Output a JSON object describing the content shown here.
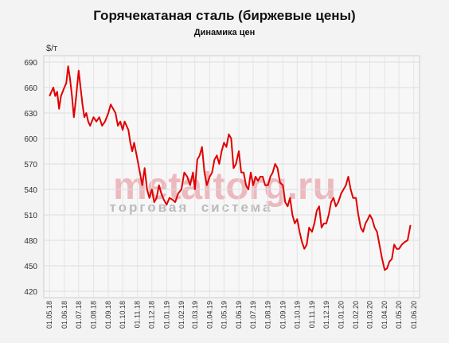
{
  "chart_data": {
    "type": "line",
    "title": "Горячекатаная сталь (биржевые цены)",
    "subtitle": "Динамика цен",
    "y_label": "$/т",
    "watermark": "metaltorg.ru",
    "watermark_sub": "торговая  система",
    "grid": true,
    "xlim": [
      "19.04.18",
      "13.06.20"
    ],
    "ylim": [
      420,
      690
    ],
    "yticks": [
      420,
      450,
      480,
      510,
      540,
      570,
      600,
      630,
      660,
      690
    ],
    "xticks": [
      "01.05.18",
      "01.06.18",
      "01.07.18",
      "01.08.18",
      "01.09.18",
      "01.10.18",
      "01.11.18",
      "01.12.18",
      "01.01.19",
      "01.02.19",
      "01.03.19",
      "01.04.19",
      "01.05.19",
      "01.06.19",
      "01.07.19",
      "01.08.19",
      "01.09.19",
      "01.10.19",
      "01.11.19",
      "01.12.19",
      "01.01.20",
      "01.02.20",
      "01.03.20",
      "01.04.20",
      "01.05.20",
      "01.06.20"
    ],
    "x": [
      "01.05.18",
      "05.05.18",
      "09.05.18",
      "13.05.18",
      "17.05.18",
      "21.05.18",
      "25.05.18",
      "01.06.18",
      "05.06.18",
      "09.06.18",
      "13.06.18",
      "17.06.18",
      "21.06.18",
      "25.06.18",
      "01.07.18",
      "05.07.18",
      "09.07.18",
      "13.07.18",
      "17.07.18",
      "21.07.18",
      "25.07.18",
      "01.08.18",
      "07.08.18",
      "13.08.18",
      "19.08.18",
      "25.08.18",
      "01.09.18",
      "06.09.18",
      "11.09.18",
      "16.09.18",
      "21.09.18",
      "26.09.18",
      "01.10.18",
      "05.10.18",
      "09.10.18",
      "13.10.18",
      "17.10.18",
      "21.10.18",
      "25.10.18",
      "01.11.18",
      "06.11.18",
      "11.11.18",
      "16.11.18",
      "21.11.18",
      "26.11.18",
      "01.12.18",
      "06.12.18",
      "11.12.18",
      "16.12.18",
      "21.12.18",
      "26.12.18",
      "01.01.19",
      "07.01.19",
      "13.01.19",
      "19.01.19",
      "25.01.19",
      "01.02.19",
      "07.02.19",
      "13.02.19",
      "19.02.19",
      "25.02.19",
      "01.03.19",
      "06.03.19",
      "11.03.19",
      "16.03.19",
      "21.03.19",
      "26.03.19",
      "01.04.19",
      "06.04.19",
      "11.04.19",
      "16.04.19",
      "21.04.19",
      "26.04.19",
      "01.05.19",
      "06.05.19",
      "11.05.19",
      "16.05.19",
      "21.05.19",
      "26.05.19",
      "01.06.19",
      "06.06.19",
      "11.06.19",
      "16.06.19",
      "21.06.19",
      "26.06.19",
      "01.07.19",
      "06.07.19",
      "11.07.19",
      "16.07.19",
      "21.07.19",
      "26.07.19",
      "01.08.19",
      "06.08.19",
      "11.08.19",
      "16.08.19",
      "21.08.19",
      "26.08.19",
      "01.09.19",
      "06.09.19",
      "11.09.19",
      "16.09.19",
      "21.09.19",
      "26.09.19",
      "01.10.19",
      "06.10.19",
      "11.10.19",
      "16.10.19",
      "21.10.19",
      "26.10.19",
      "01.11.19",
      "06.11.19",
      "11.11.19",
      "16.11.19",
      "21.11.19",
      "26.11.19",
      "01.12.19",
      "06.12.19",
      "11.12.19",
      "16.12.19",
      "21.12.19",
      "26.12.19",
      "01.01.20",
      "06.01.20",
      "11.01.20",
      "16.01.20",
      "21.01.20",
      "26.01.20",
      "01.02.20",
      "06.02.20",
      "11.02.20",
      "16.02.20",
      "21.02.20",
      "26.02.20",
      "01.03.20",
      "06.03.20",
      "11.03.20",
      "16.03.20",
      "21.03.20",
      "26.03.20",
      "01.04.20",
      "06.04.20",
      "11.04.20",
      "16.04.20",
      "21.04.20",
      "26.04.20",
      "01.05.20",
      "07.05.20",
      "13.05.20",
      "19.05.20",
      "25.05.20"
    ],
    "series": [
      {
        "name": "Горячекатаная сталь",
        "color": "#e00000",
        "values": [
          650,
          655,
          660,
          650,
          655,
          635,
          650,
          660,
          665,
          685,
          670,
          650,
          625,
          645,
          680,
          660,
          640,
          625,
          630,
          620,
          615,
          625,
          620,
          625,
          615,
          620,
          630,
          640,
          635,
          630,
          615,
          620,
          610,
          620,
          615,
          610,
          595,
          585,
          595,
          575,
          560,
          545,
          565,
          540,
          530,
          540,
          525,
          530,
          545,
          535,
          528,
          522,
          530,
          528,
          525,
          535,
          540,
          560,
          555,
          545,
          560,
          540,
          575,
          580,
          590,
          560,
          545,
          555,
          560,
          575,
          580,
          570,
          585,
          595,
          590,
          605,
          600,
          565,
          570,
          585,
          560,
          560,
          545,
          540,
          560,
          545,
          555,
          550,
          555,
          555,
          545,
          545,
          555,
          560,
          570,
          565,
          548,
          545,
          525,
          520,
          530,
          510,
          500,
          505,
          490,
          478,
          470,
          475,
          495,
          490,
          500,
          515,
          520,
          495,
          500,
          500,
          510,
          525,
          530,
          520,
          525,
          535,
          540,
          545,
          555,
          540,
          530,
          530,
          510,
          495,
          490,
          500,
          505,
          510,
          505,
          495,
          490,
          475,
          460,
          445,
          447,
          455,
          458,
          475,
          470,
          470,
          475,
          478,
          480,
          498
        ]
      }
    ]
  }
}
